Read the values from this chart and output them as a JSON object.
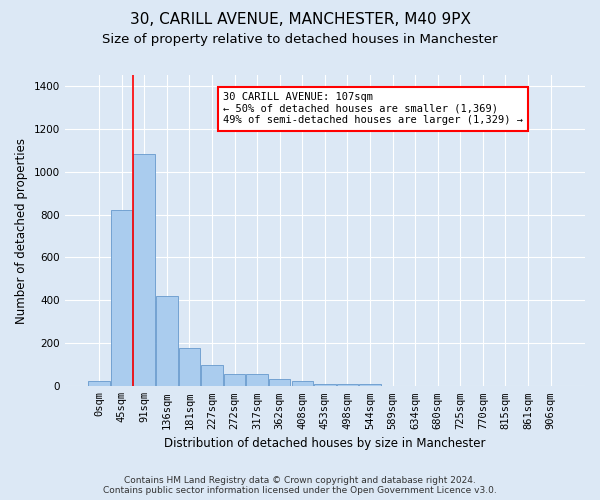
{
  "title": "30, CARILL AVENUE, MANCHESTER, M40 9PX",
  "subtitle": "Size of property relative to detached houses in Manchester",
  "xlabel": "Distribution of detached houses by size in Manchester",
  "ylabel": "Number of detached properties",
  "footer_line1": "Contains HM Land Registry data © Crown copyright and database right 2024.",
  "footer_line2": "Contains public sector information licensed under the Open Government Licence v3.0.",
  "bar_labels": [
    "0sqm",
    "45sqm",
    "91sqm",
    "136sqm",
    "181sqm",
    "227sqm",
    "272sqm",
    "317sqm",
    "362sqm",
    "408sqm",
    "453sqm",
    "498sqm",
    "544sqm",
    "589sqm",
    "634sqm",
    "680sqm",
    "725sqm",
    "770sqm",
    "815sqm",
    "861sqm",
    "906sqm"
  ],
  "bar_values": [
    25,
    820,
    1080,
    420,
    180,
    100,
    57,
    57,
    35,
    25,
    12,
    12,
    12,
    0,
    0,
    0,
    0,
    0,
    0,
    0,
    0
  ],
  "bar_color": "#aaccee",
  "bar_edge_color": "#6699cc",
  "vline_x": 1.5,
  "vline_color": "red",
  "annotation_text": "30 CARILL AVENUE: 107sqm\n← 50% of detached houses are smaller (1,369)\n49% of semi-detached houses are larger (1,329) →",
  "annotation_box_color": "#ffffff",
  "annotation_box_edge": "red",
  "ylim": [
    0,
    1450
  ],
  "yticks": [
    0,
    200,
    400,
    600,
    800,
    1000,
    1200,
    1400
  ],
  "bg_color": "#dce8f5",
  "plot_bg_color": "#dce8f5",
  "grid_color": "#ffffff",
  "title_fontsize": 11,
  "subtitle_fontsize": 9.5,
  "tick_fontsize": 7.5,
  "ylabel_fontsize": 8.5,
  "xlabel_fontsize": 8.5,
  "footer_fontsize": 6.5
}
